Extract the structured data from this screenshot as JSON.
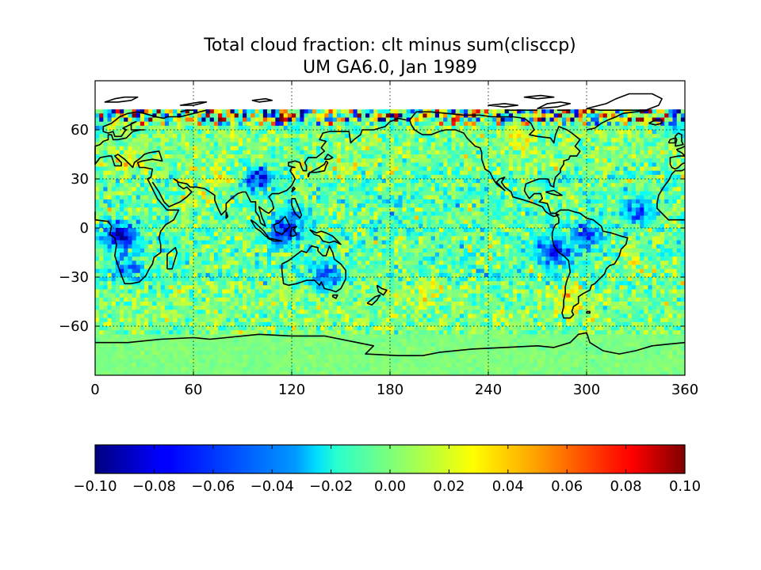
{
  "figure": {
    "title": "Total cloud fraction: clt minus sum(clisccp)",
    "subtitle": "UM GA6.0, Jan 1989"
  },
  "chart_data": {
    "type": "heatmap",
    "title": "Total cloud fraction: clt minus sum(clisccp)",
    "subtitle": "UM GA6.0, Jan 1989",
    "colormap": "jet",
    "xlim": [
      0,
      360
    ],
    "ylim": [
      -90,
      90
    ],
    "xticks": [
      0,
      60,
      120,
      180,
      240,
      300,
      360
    ],
    "xtick_labels": [
      "0",
      "60",
      "120",
      "180",
      "240",
      "300",
      "360"
    ],
    "yticks": [
      60,
      30,
      0,
      -30,
      -60
    ],
    "ytick_labels": [
      "60",
      "30",
      "0",
      "−30",
      "−60"
    ],
    "grid": "dotted",
    "coastlines": true,
    "colorbar": {
      "orientation": "horizontal",
      "placement": "bottom",
      "vmin": -0.1,
      "vmax": 0.1,
      "ticks": [
        -0.1,
        -0.08,
        -0.06,
        -0.04,
        -0.02,
        0.0,
        0.02,
        0.04,
        0.06,
        0.08,
        0.1
      ],
      "tick_labels": [
        "−0.10",
        "−0.08",
        "−0.06",
        "−0.04",
        "−0.02",
        "0.00",
        "0.02",
        "0.04",
        "0.06",
        "0.08",
        "0.10"
      ]
    },
    "no_data_above_lat": 72,
    "features": [
      {
        "lon": 15,
        "lat": -5,
        "value": -0.1
      },
      {
        "lon": 280,
        "lat": -15,
        "value": -0.08
      },
      {
        "lon": 300,
        "lat": -5,
        "value": -0.06
      },
      {
        "lon": 330,
        "lat": 10,
        "value": -0.05
      },
      {
        "lon": 355,
        "lat": 65,
        "value": -0.06
      },
      {
        "lon": 100,
        "lat": 30,
        "value": -0.07
      },
      {
        "lon": 115,
        "lat": -5,
        "value": -0.06
      },
      {
        "lon": 120,
        "lat": 5,
        "value": -0.05
      },
      {
        "lon": 140,
        "lat": -30,
        "value": -0.06
      },
      {
        "lon": 20,
        "lat": -25,
        "value": -0.05
      },
      {
        "lon": 75,
        "lat": 30,
        "value": 0.03
      },
      {
        "lon": 60,
        "lat": 20,
        "value": 0.025
      },
      {
        "lon": 150,
        "lat": 35,
        "value": 0.02
      },
      {
        "lon": 260,
        "lat": 55,
        "value": 0.025
      },
      {
        "lon": 200,
        "lat": -40,
        "value": 0.02
      },
      {
        "lon": 20,
        "lat": 40,
        "value": 0.02
      },
      {
        "lon": 330,
        "lat": -20,
        "value": 0.02
      },
      {
        "lon": 290,
        "lat": -45,
        "value": 0.03
      }
    ]
  }
}
